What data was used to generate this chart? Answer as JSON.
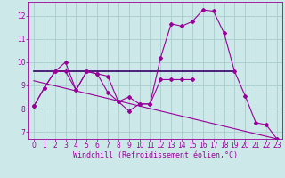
{
  "xlabel": "Windchill (Refroidissement éolien,°C)",
  "bg_color": "#cce8e8",
  "grid_color": "#aacccc",
  "line_color": "#990099",
  "dark_line_color": "#330066",
  "x_ticks": [
    0,
    1,
    2,
    3,
    4,
    5,
    6,
    7,
    8,
    9,
    10,
    11,
    12,
    13,
    14,
    15,
    16,
    17,
    18,
    19,
    20,
    21,
    22,
    23
  ],
  "y_ticks": [
    7,
    8,
    9,
    10,
    11,
    12
  ],
  "xlim": [
    -0.5,
    23.5
  ],
  "ylim": [
    6.7,
    12.6
  ],
  "curve1_x": [
    0,
    1,
    2,
    3,
    4,
    5,
    6,
    7,
    8,
    9,
    10,
    11,
    12,
    13,
    14,
    15,
    16,
    17,
    18,
    19,
    20,
    21,
    22,
    23
  ],
  "curve1_y": [
    8.1,
    8.9,
    9.6,
    10.0,
    8.8,
    9.6,
    9.5,
    8.7,
    8.3,
    7.9,
    8.2,
    8.2,
    10.2,
    11.65,
    11.55,
    11.75,
    12.25,
    12.2,
    11.25,
    9.6,
    8.55,
    7.4,
    7.3,
    6.7
  ],
  "curve2_x": [
    0,
    1,
    2,
    3,
    4,
    5,
    6,
    7,
    8,
    9,
    10,
    11,
    12,
    13,
    14,
    15
  ],
  "curve2_y": [
    8.1,
    8.9,
    9.6,
    9.6,
    8.8,
    9.6,
    9.5,
    9.4,
    8.3,
    8.5,
    8.2,
    8.2,
    9.25,
    9.25,
    9.25,
    9.25
  ],
  "hline_x": [
    0,
    19
  ],
  "hline_y": [
    9.6,
    9.6
  ],
  "regline_x": [
    0,
    23
  ],
  "regline_y": [
    9.2,
    6.7
  ],
  "marker": "D",
  "markersize": 2.0,
  "linewidth": 0.8,
  "font_color": "#990099",
  "tick_fontsize": 5.5,
  "label_fontsize": 6.0
}
